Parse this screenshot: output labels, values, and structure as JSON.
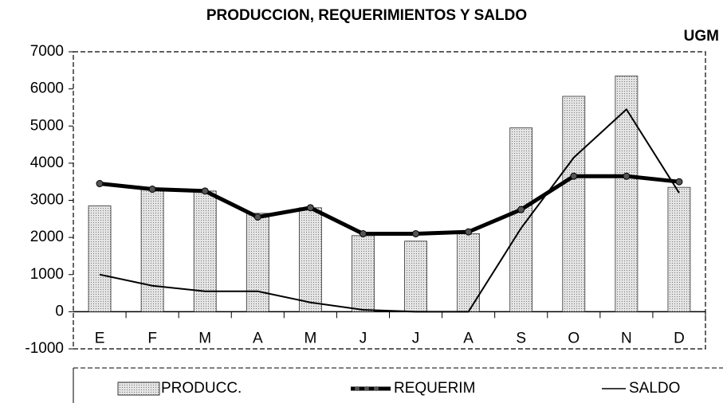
{
  "chart_data": {
    "type": "bar_line",
    "title": "PRODUCCION, REQUERIMIENTOS Y SALDO",
    "unit_label": "UGM",
    "categories": [
      "E",
      "F",
      "M",
      "A",
      "M",
      "J",
      "J",
      "A",
      "S",
      "O",
      "N",
      "D"
    ],
    "series": [
      {
        "name": "PRODUCC.",
        "type": "bar",
        "color": "#c8c8c8",
        "values": [
          2850,
          3300,
          3250,
          2650,
          2800,
          2050,
          1900,
          2100,
          4950,
          5800,
          6350,
          3350
        ]
      },
      {
        "name": "REQUERIM",
        "type": "line",
        "color": "#000000",
        "values": [
          3450,
          3300,
          3250,
          2550,
          2800,
          2100,
          2100,
          2150,
          2750,
          3650,
          3650,
          3500
        ]
      },
      {
        "name": "SALDO",
        "type": "line",
        "color": "#000000",
        "values": [
          1000,
          700,
          550,
          550,
          250,
          50,
          0,
          0,
          2250,
          4150,
          5450,
          3200
        ]
      }
    ],
    "ylim": [
      -1000,
      7000
    ],
    "yticks": [
      -1000,
      0,
      1000,
      2000,
      3000,
      4000,
      5000,
      6000,
      7000
    ],
    "legend": "bottom"
  }
}
